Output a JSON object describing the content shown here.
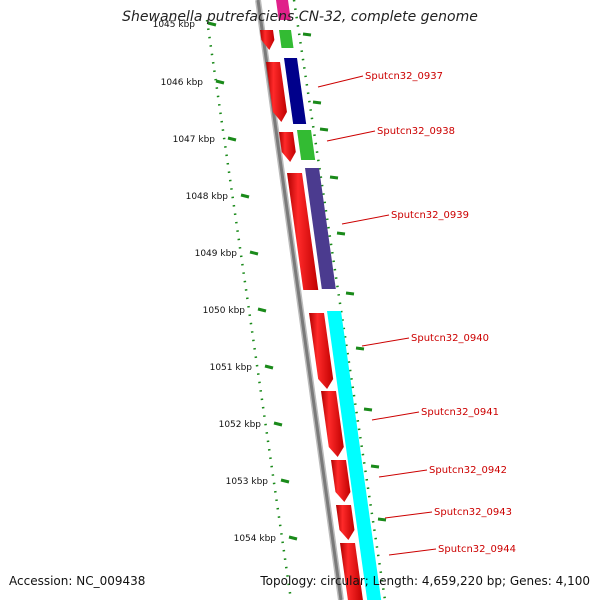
{
  "title": "Shewanella putrefaciens CN-32, complete genome",
  "accession": "Accession: NC_009438",
  "summary": "Topology: circular; Length: 4,659,220 bp; Genes: 4,100",
  "colors": {
    "cds": "#ff0000",
    "backbone": "#888888",
    "ticks": "#1a8a1a",
    "labels": "#cc0000"
  },
  "axis_labels": [
    {
      "text": "1045 kbp",
      "faded": true
    },
    {
      "text": "1046 kbp"
    },
    {
      "text": "1047 kbp"
    },
    {
      "text": "1048 kbp"
    },
    {
      "text": "1049 kbp"
    },
    {
      "text": "1050 kbp"
    },
    {
      "text": "1051 kbp"
    },
    {
      "text": "1052 kbp"
    },
    {
      "text": "1053 kbp"
    },
    {
      "text": "1054 kbp"
    }
  ],
  "genes": [
    {
      "label": "Sputcn32_0937",
      "cog_color": "#00008b"
    },
    {
      "label": "Sputcn32_0938",
      "cog_color": "#33bb33"
    },
    {
      "label": "Sputcn32_0939",
      "cog_color": "#4b3b8f"
    },
    {
      "label": "Sputcn32_0940",
      "cog_color": "#00ffff"
    },
    {
      "label": "Sputcn32_0941",
      "cog_color": "#00ffff"
    },
    {
      "label": "Sputcn32_0942",
      "cog_color": "#00ffff"
    },
    {
      "label": "Sputcn32_0943",
      "cog_color": "#00ffff"
    },
    {
      "label": "Sputcn32_0944",
      "cog_color": "#00ffff"
    }
  ]
}
